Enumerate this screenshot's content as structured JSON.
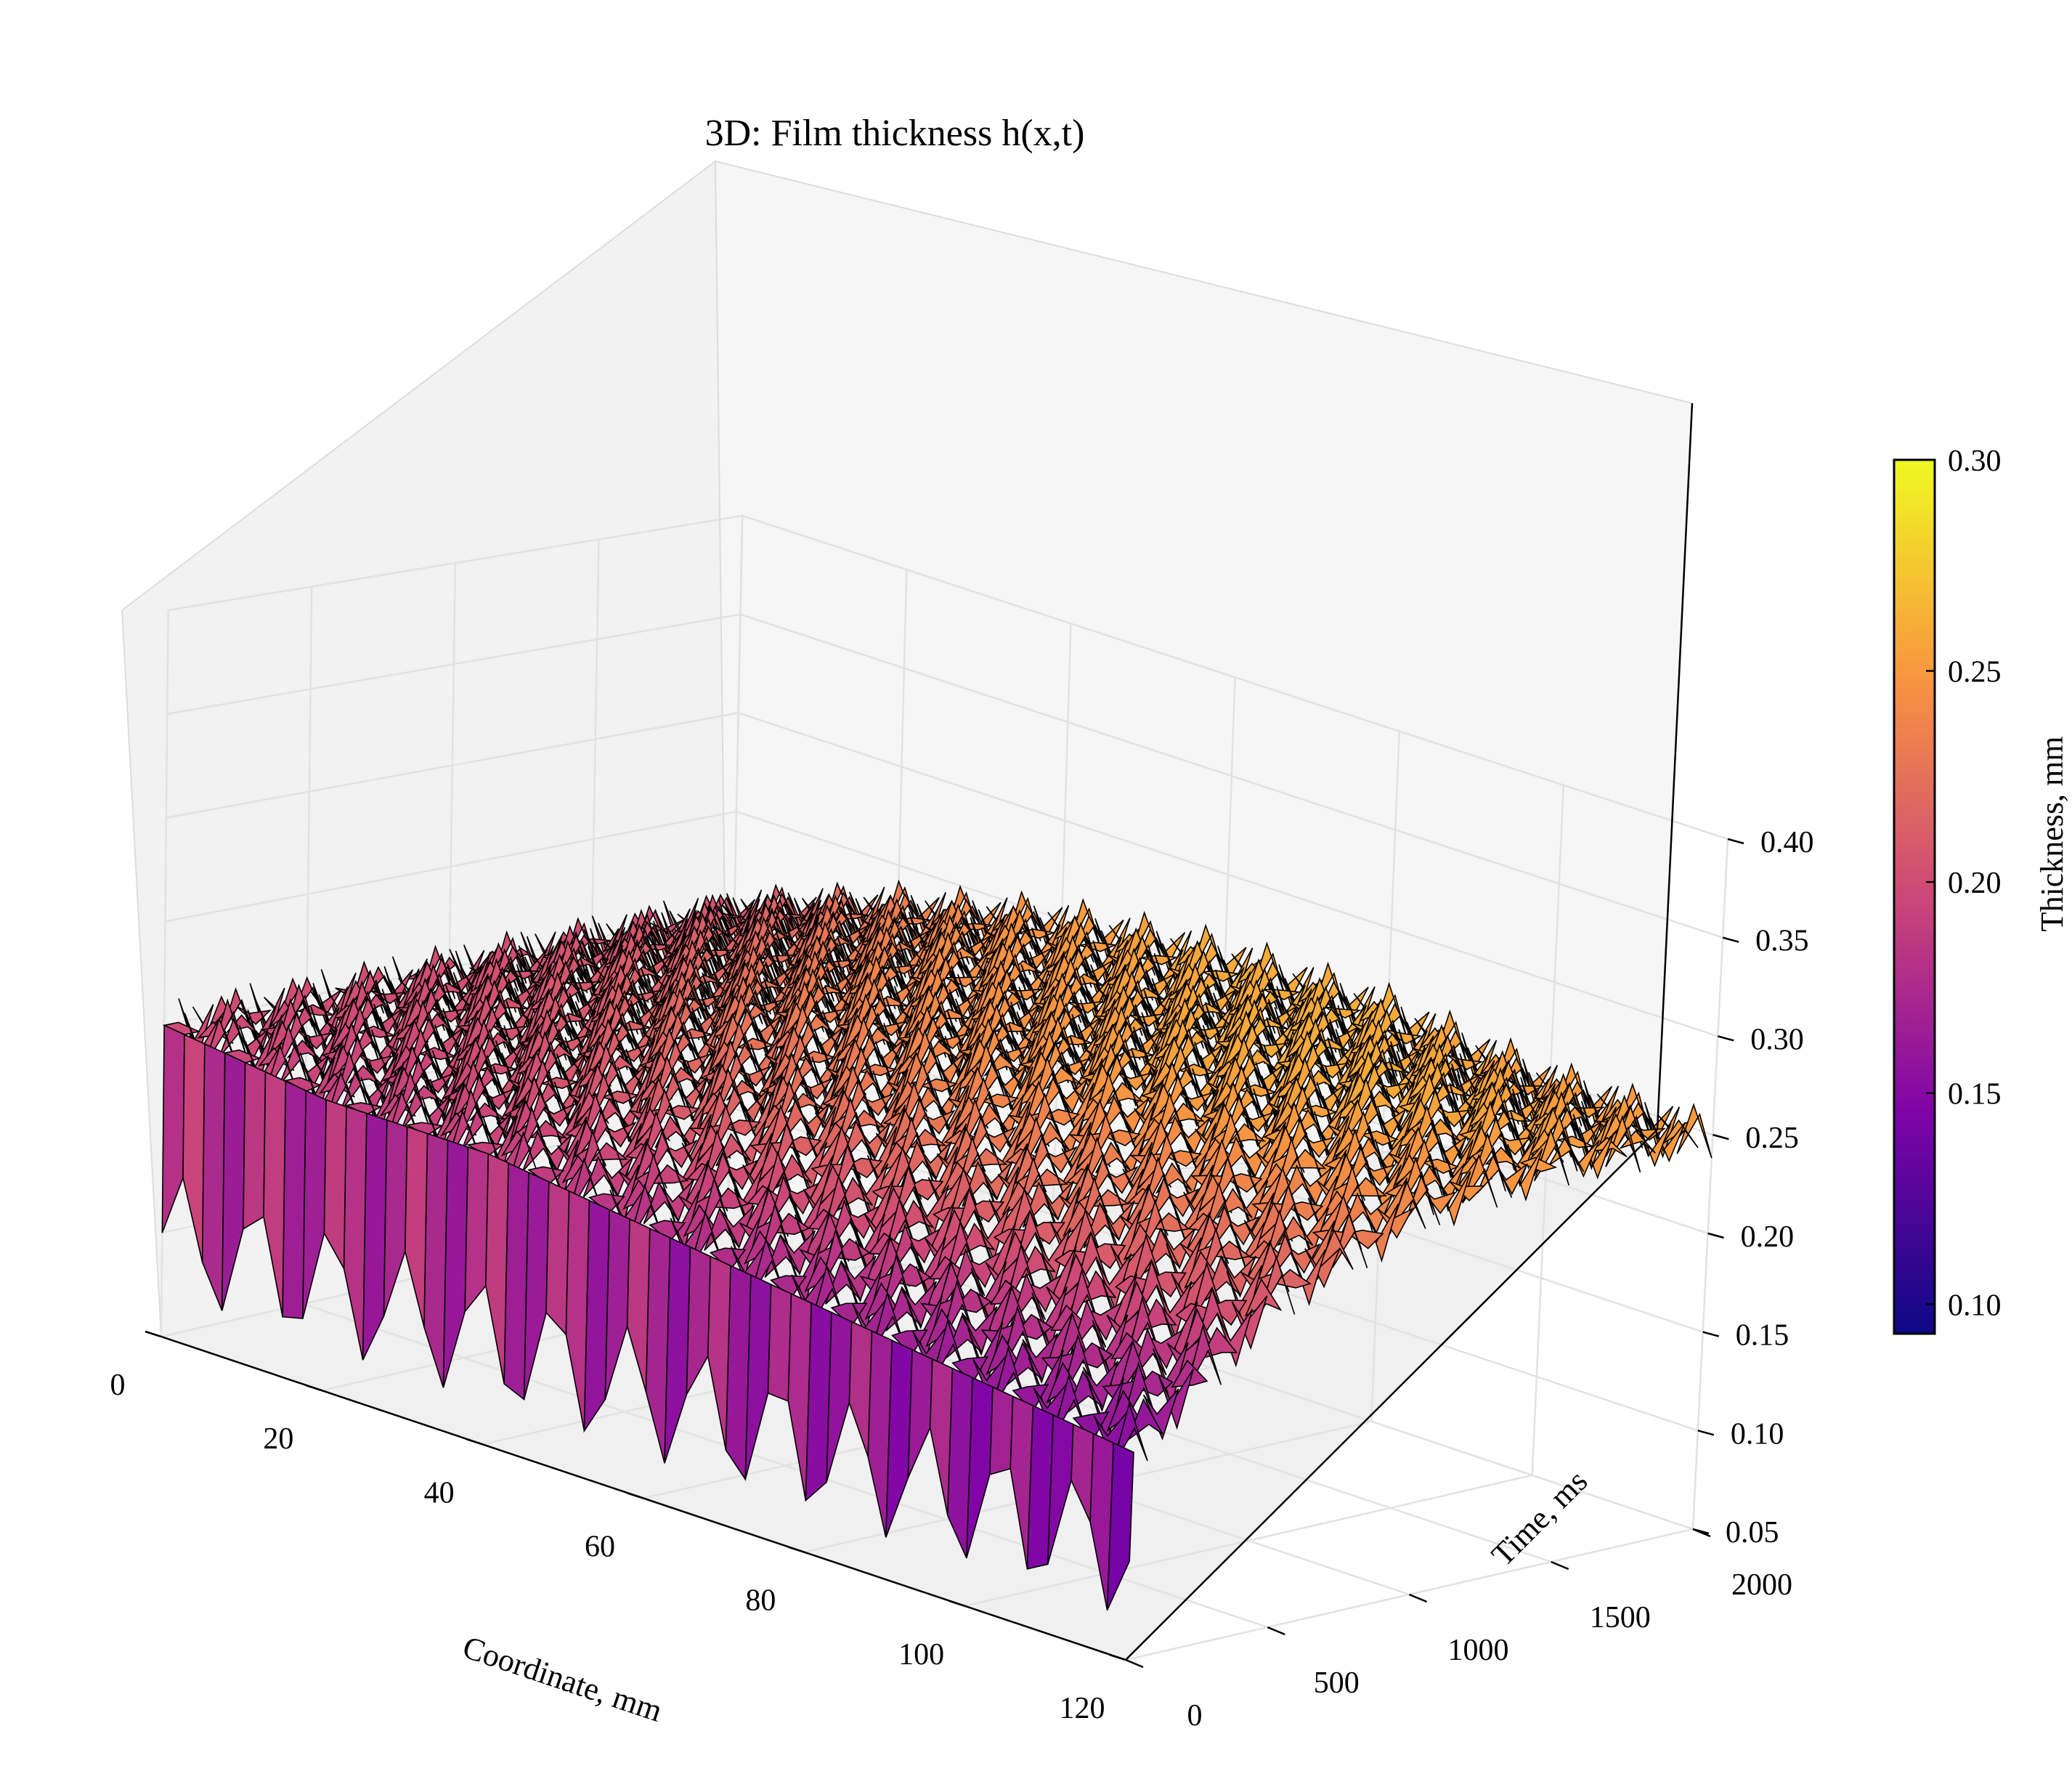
{
  "title": "3D: Film thickness h(x,t)",
  "chart_data": {
    "type": "surface3d",
    "title": "3D: Film thickness h(x,t)",
    "xlabel": "Coordinate, mm",
    "ylabel": "Time, ms",
    "zlabel": "",
    "xlim": [
      0,
      120
    ],
    "ylim": [
      0,
      2000
    ],
    "zlim": [
      0.05,
      0.4
    ],
    "x_ticks": [
      "0",
      "20",
      "40",
      "60",
      "80",
      "100",
      "120"
    ],
    "y_ticks": [
      "0",
      "500",
      "1000",
      "1500",
      "2000"
    ],
    "z_ticks": [
      "0.05",
      "0.10",
      "0.15",
      "0.20",
      "0.25",
      "0.30",
      "0.35",
      "0.40"
    ],
    "colormap": "plasma",
    "grid": true,
    "surface_samples": {
      "x": [
        0,
        20,
        40,
        60,
        80,
        100,
        120
      ],
      "t": [
        0,
        500,
        1000,
        1500,
        2000
      ],
      "h": [
        [
          0.2,
          0.2,
          0.2,
          0.2,
          0.2
        ],
        [
          0.19,
          0.2,
          0.21,
          0.22,
          0.23
        ],
        [
          0.19,
          0.21,
          0.23,
          0.24,
          0.25
        ],
        [
          0.18,
          0.22,
          0.24,
          0.25,
          0.26
        ],
        [
          0.17,
          0.22,
          0.25,
          0.26,
          0.26
        ],
        [
          0.16,
          0.22,
          0.25,
          0.26,
          0.25
        ],
        [
          0.15,
          0.21,
          0.24,
          0.25,
          0.25
        ]
      ]
    },
    "colorbar": {
      "label": "Thickness, mm",
      "range": [
        0.093,
        0.3
      ],
      "ticks": [
        "0.10",
        "0.15",
        "0.20",
        "0.25",
        "0.30"
      ]
    }
  }
}
